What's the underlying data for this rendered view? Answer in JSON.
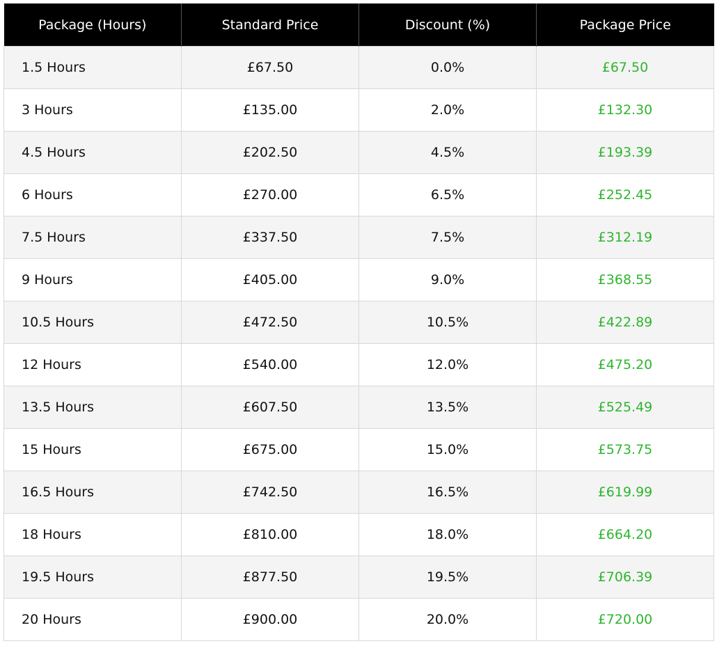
{
  "table": {
    "headers": [
      "Package (Hours)",
      "Standard Price",
      "Discount (%)",
      "Package Price"
    ],
    "rows": [
      [
        "1.5 Hours",
        "£67.50",
        "0.0%",
        "£67.50"
      ],
      [
        "3 Hours",
        "£135.00",
        "2.0%",
        "£132.30"
      ],
      [
        "4.5 Hours",
        "£202.50",
        "4.5%",
        "£193.39"
      ],
      [
        "6 Hours",
        "£270.00",
        "6.5%",
        "£252.45"
      ],
      [
        "7.5 Hours",
        "£337.50",
        "7.5%",
        "£312.19"
      ],
      [
        "9 Hours",
        "£405.00",
        "9.0%",
        "£368.55"
      ],
      [
        "10.5 Hours",
        "£472.50",
        "10.5%",
        "£422.89"
      ],
      [
        "12 Hours",
        "£540.00",
        "12.0%",
        "£475.20"
      ],
      [
        "13.5 Hours",
        "£607.50",
        "13.5%",
        "£525.49"
      ],
      [
        "15 Hours",
        "£675.00",
        "15.0%",
        "£573.75"
      ],
      [
        "16.5 Hours",
        "£742.50",
        "16.5%",
        "£619.99"
      ],
      [
        "18 Hours",
        "£810.00",
        "18.0%",
        "£664.20"
      ],
      [
        "19.5 Hours",
        "£877.50",
        "19.5%",
        "£706.39"
      ],
      [
        "20 Hours",
        "£900.00",
        "20.0%",
        "£720.00"
      ]
    ]
  }
}
